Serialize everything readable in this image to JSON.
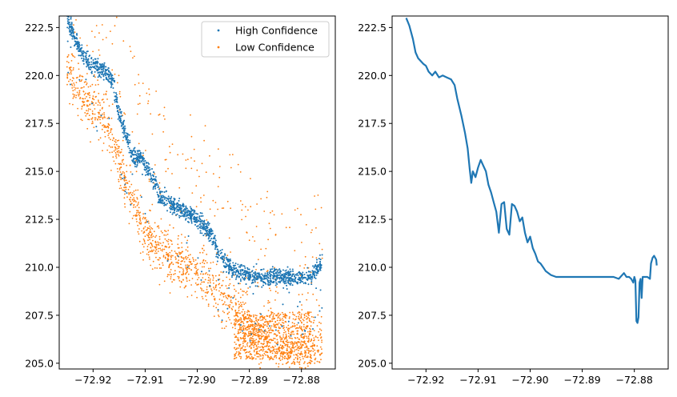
{
  "chart_data": [
    {
      "type": "scatter",
      "title": "",
      "xlabel": "",
      "ylabel": "",
      "xlim": [
        -72.9265,
        -72.8735
      ],
      "ylim": [
        204.7,
        223.1
      ],
      "xticks": [
        -72.92,
        -72.91,
        -72.9,
        -72.89,
        -72.88
      ],
      "xtick_labels": [
        "−72.92",
        "−72.91",
        "−72.90",
        "−72.89",
        "−72.88"
      ],
      "yticks": [
        205.0,
        207.5,
        210.0,
        212.5,
        215.0,
        217.5,
        220.0,
        222.5
      ],
      "ytick_labels": [
        "205.0",
        "207.5",
        "210.0",
        "212.5",
        "215.0",
        "217.5",
        "220.0",
        "222.5"
      ],
      "legend": "top-right",
      "series": [
        {
          "name": "High Confidence",
          "color": "#1f77b4",
          "trend": [
            [
              -72.925,
              223.0
            ],
            [
              -72.923,
              221.6
            ],
            [
              -72.921,
              220.7
            ],
            [
              -72.919,
              220.4
            ],
            [
              -72.917,
              220.1
            ],
            [
              -72.916,
              219.5
            ],
            [
              -72.915,
              218.0
            ],
            [
              -72.914,
              217.2
            ],
            [
              -72.913,
              216.3
            ],
            [
              -72.912,
              215.6
            ],
            [
              -72.911,
              215.8
            ],
            [
              -72.91,
              215.4
            ],
            [
              -72.909,
              214.8
            ],
            [
              -72.908,
              214.3
            ],
            [
              -72.907,
              213.7
            ],
            [
              -72.905,
              213.3
            ],
            [
              -72.903,
              213.0
            ],
            [
              -72.901,
              212.7
            ],
            [
              -72.899,
              212.2
            ],
            [
              -72.897,
              211.6
            ],
            [
              -72.896,
              210.8
            ],
            [
              -72.894,
              210.1
            ],
            [
              -72.892,
              209.7
            ],
            [
              -72.889,
              209.5
            ],
            [
              -72.886,
              209.5
            ],
            [
              -72.883,
              209.5
            ],
            [
              -72.88,
              209.5
            ],
            [
              -72.878,
              209.5
            ],
            [
              -72.877,
              209.9
            ],
            [
              -72.876,
              210.3
            ]
          ]
        },
        {
          "name": "Low Confidence",
          "color": "#ff7f0e",
          "trend": [
            [
              -72.925,
              220.5
            ],
            [
              -72.923,
              219.4
            ],
            [
              -72.921,
              218.6
            ],
            [
              -72.919,
              218.2
            ],
            [
              -72.917,
              217.4
            ],
            [
              -72.915,
              215.6
            ],
            [
              -72.913,
              214.0
            ],
            [
              -72.911,
              212.4
            ],
            [
              -72.909,
              211.6
            ],
            [
              -72.907,
              210.9
            ],
            [
              -72.905,
              210.5
            ],
            [
              -72.903,
              210.2
            ],
            [
              -72.901,
              209.9
            ],
            [
              -72.899,
              209.5
            ],
            [
              -72.897,
              209.1
            ],
            [
              -72.895,
              208.6
            ],
            [
              -72.893,
              207.9
            ],
            [
              -72.891,
              207.2
            ],
            [
              -72.889,
              206.6
            ],
            [
              -72.887,
              206.4
            ],
            [
              -72.885,
              206.3
            ],
            [
              -72.883,
              205.9
            ],
            [
              -72.881,
              205.7
            ],
            [
              -72.879,
              205.6
            ],
            [
              -72.877,
              205.8
            ],
            [
              -72.876,
              206.2
            ]
          ]
        }
      ]
    },
    {
      "type": "line",
      "title": "",
      "xlabel": "",
      "ylabel": "",
      "xlim": [
        -72.9265,
        -72.8735
      ],
      "ylim": [
        204.7,
        223.1
      ],
      "xticks": [
        -72.92,
        -72.91,
        -72.9,
        -72.89,
        -72.88
      ],
      "xtick_labels": [
        "−72.92",
        "−72.91",
        "−72.90",
        "−72.89",
        "−72.88"
      ],
      "yticks": [
        205.0,
        207.5,
        210.0,
        212.5,
        215.0,
        217.5,
        220.0,
        222.5
      ],
      "ytick_labels": [
        "205.0",
        "207.5",
        "210.0",
        "212.5",
        "215.0",
        "217.5",
        "220.0",
        "222.5"
      ],
      "series": [
        {
          "color": "#1f77b4",
          "x": [
            -72.9238,
            -72.9232,
            -72.9225,
            -72.922,
            -72.9215,
            -72.9205,
            -72.92,
            -72.9195,
            -72.9188,
            -72.9182,
            -72.9175,
            -72.9168,
            -72.916,
            -72.9152,
            -72.9145,
            -72.914,
            -72.9132,
            -72.9125,
            -72.912,
            -72.9116,
            -72.9113,
            -72.911,
            -72.9105,
            -72.91,
            -72.9095,
            -72.909,
            -72.9085,
            -72.908,
            -72.9075,
            -72.907,
            -72.9065,
            -72.906,
            -72.9055,
            -72.905,
            -72.9045,
            -72.904,
            -72.9035,
            -72.903,
            -72.9025,
            -72.902,
            -72.9015,
            -72.901,
            -72.9005,
            -72.9,
            -72.8995,
            -72.899,
            -72.8985,
            -72.898,
            -72.8975,
            -72.897,
            -72.896,
            -72.895,
            -72.894,
            -72.892,
            -72.89,
            -72.888,
            -72.886,
            -72.884,
            -72.883,
            -72.882,
            -72.8815,
            -72.881,
            -72.8806,
            -72.8802,
            -72.88,
            -72.8798,
            -72.8796,
            -72.8794,
            -72.8792,
            -72.879,
            -72.8788,
            -72.8786,
            -72.8784,
            -72.878,
            -72.8775,
            -72.877,
            -72.8768,
            -72.8765,
            -72.8762,
            -72.876,
            -72.8758,
            -72.8757
          ],
          "y": [
            223.0,
            222.6,
            221.9,
            221.2,
            220.9,
            220.6,
            220.5,
            220.2,
            220.0,
            220.2,
            219.9,
            220.0,
            219.9,
            219.8,
            219.5,
            218.8,
            217.9,
            217.0,
            216.2,
            215.1,
            214.4,
            215.0,
            214.7,
            215.2,
            215.6,
            215.3,
            215.0,
            214.3,
            213.9,
            213.4,
            212.9,
            211.8,
            213.3,
            213.4,
            212.0,
            211.7,
            213.3,
            213.2,
            212.9,
            212.4,
            212.6,
            211.8,
            211.3,
            211.6,
            211.0,
            210.7,
            210.3,
            210.2,
            210.0,
            209.8,
            209.6,
            209.5,
            209.5,
            209.5,
            209.5,
            209.5,
            209.5,
            209.5,
            209.4,
            209.7,
            209.5,
            209.5,
            209.4,
            209.2,
            209.5,
            209.3,
            207.2,
            207.1,
            207.4,
            209.2,
            209.4,
            208.4,
            209.5,
            209.5,
            209.5,
            209.4,
            210.2,
            210.5,
            210.6,
            210.5,
            210.4,
            210.1
          ]
        }
      ]
    }
  ]
}
